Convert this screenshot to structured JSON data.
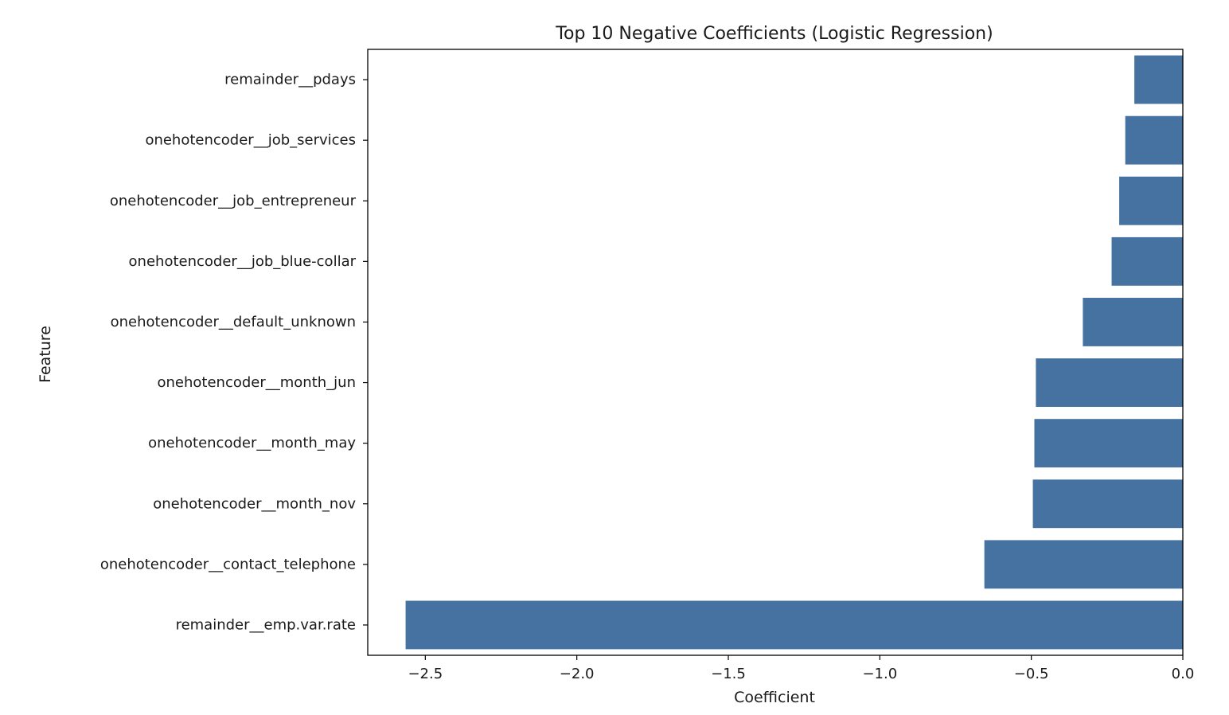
{
  "chart_data": {
    "type": "bar",
    "orientation": "horizontal",
    "title": "Top 10 Negative Coefficients (Logistic Regression)",
    "xlabel": "Coefficient",
    "ylabel": "Feature",
    "xlim": [
      -2.69,
      0.0
    ],
    "xticks": [
      -2.5,
      -2.0,
      -1.5,
      -1.0,
      -0.5,
      0.0
    ],
    "xtick_labels": [
      "−2.5",
      "−2.0",
      "−1.5",
      "−1.0",
      "−0.5",
      "0.0"
    ],
    "grid": false,
    "bar_color": "#4572a0",
    "categories": [
      "remainder__pdays",
      "onehotencoder__job_services",
      "onehotencoder__job_entrepreneur",
      "onehotencoder__job_blue-collar",
      "onehotencoder__default_unknown",
      "onehotencoder__month_jun",
      "onehotencoder__month_may",
      "onehotencoder__month_nov",
      "onehotencoder__contact_telephone",
      "remainder__emp.var.rate"
    ],
    "values": [
      -0.16,
      -0.19,
      -0.21,
      -0.235,
      -0.33,
      -0.485,
      -0.49,
      -0.495,
      -0.655,
      -2.565
    ]
  }
}
